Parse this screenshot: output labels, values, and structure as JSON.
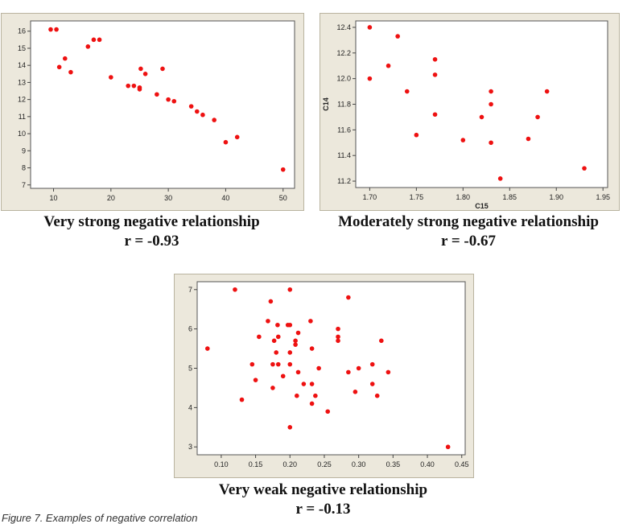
{
  "chart_data": [
    {
      "type": "scatter",
      "title": "",
      "xlabel": "",
      "ylabel": "",
      "xlim": [
        6,
        52
      ],
      "ylim": [
        6.8,
        16.6
      ],
      "xticks": [
        "10",
        "20",
        "30",
        "40",
        "50"
      ],
      "yticks": [
        "7",
        "8",
        "9",
        "10",
        "11",
        "12",
        "13",
        "14",
        "15",
        "16"
      ],
      "grid": false,
      "legend": "none",
      "point_color": "#ee1111",
      "points": [
        [
          9.5,
          16.1
        ],
        [
          10.5,
          16.1
        ],
        [
          11,
          13.9
        ],
        [
          12,
          14.4
        ],
        [
          13,
          13.6
        ],
        [
          16,
          15.1
        ],
        [
          17,
          15.5
        ],
        [
          18,
          15.5
        ],
        [
          20,
          13.3
        ],
        [
          23,
          12.8
        ],
        [
          24,
          12.8
        ],
        [
          25,
          12.7
        ],
        [
          25,
          12.6
        ],
        [
          25.2,
          13.8
        ],
        [
          26,
          13.5
        ],
        [
          28,
          12.3
        ],
        [
          29,
          13.8
        ],
        [
          30,
          12.0
        ],
        [
          31,
          11.9
        ],
        [
          34,
          11.6
        ],
        [
          35,
          11.3
        ],
        [
          36,
          11.1
        ],
        [
          38,
          10.8
        ],
        [
          40,
          9.5
        ],
        [
          42,
          9.8
        ],
        [
          50,
          7.9
        ]
      ],
      "caption_line1": "Very strong negative relationship",
      "caption_line2": "r = -0.93"
    },
    {
      "type": "scatter",
      "title": "",
      "xlabel": "C15",
      "ylabel": "C14",
      "xlim": [
        1.685,
        1.955
      ],
      "ylim": [
        11.15,
        12.45
      ],
      "xticks": [
        "1.70",
        "1.75",
        "1.80",
        "1.85",
        "1.90",
        "1.95"
      ],
      "yticks": [
        "11.2",
        "11.4",
        "11.6",
        "11.8",
        "12.0",
        "12.2",
        "12.4"
      ],
      "grid": false,
      "legend": "none",
      "point_color": "#ee1111",
      "points": [
        [
          1.7,
          12.4
        ],
        [
          1.7,
          12.0
        ],
        [
          1.72,
          12.1
        ],
        [
          1.73,
          12.33
        ],
        [
          1.74,
          11.9
        ],
        [
          1.75,
          11.56
        ],
        [
          1.77,
          12.15
        ],
        [
          1.77,
          12.03
        ],
        [
          1.77,
          11.72
        ],
        [
          1.8,
          11.52
        ],
        [
          1.82,
          11.7
        ],
        [
          1.83,
          11.9
        ],
        [
          1.83,
          11.8
        ],
        [
          1.83,
          11.5
        ],
        [
          1.84,
          11.22
        ],
        [
          1.87,
          11.53
        ],
        [
          1.88,
          11.7
        ],
        [
          1.89,
          11.9
        ],
        [
          1.93,
          11.3
        ]
      ],
      "caption_line1": "Moderately strong negative relationship",
      "caption_line2": "r = -0.67"
    },
    {
      "type": "scatter",
      "title": "",
      "xlabel": "",
      "ylabel": "",
      "xlim": [
        0.065,
        0.455
      ],
      "ylim": [
        2.8,
        7.2
      ],
      "xticks": [
        "0.10",
        "0.15",
        "0.20",
        "0.25",
        "0.30",
        "0.35",
        "0.40",
        "0.45"
      ],
      "yticks": [
        "3",
        "4",
        "5",
        "6",
        "7"
      ],
      "grid": false,
      "legend": "none",
      "point_color": "#ee1111",
      "points": [
        [
          0.08,
          5.5
        ],
        [
          0.12,
          7.0
        ],
        [
          0.13,
          4.2
        ],
        [
          0.145,
          5.1
        ],
        [
          0.15,
          4.7
        ],
        [
          0.155,
          5.8
        ],
        [
          0.168,
          6.2
        ],
        [
          0.172,
          6.7
        ],
        [
          0.175,
          5.1
        ],
        [
          0.175,
          4.5
        ],
        [
          0.177,
          5.7
        ],
        [
          0.18,
          5.4
        ],
        [
          0.182,
          6.1
        ],
        [
          0.183,
          5.8
        ],
        [
          0.183,
          5.1
        ],
        [
          0.19,
          4.8
        ],
        [
          0.197,
          6.1
        ],
        [
          0.2,
          6.1
        ],
        [
          0.2,
          7.0
        ],
        [
          0.2,
          5.4
        ],
        [
          0.2,
          5.1
        ],
        [
          0.2,
          3.5
        ],
        [
          0.208,
          5.7
        ],
        [
          0.208,
          5.6
        ],
        [
          0.21,
          4.3
        ],
        [
          0.212,
          5.9
        ],
        [
          0.212,
          4.9
        ],
        [
          0.22,
          4.6
        ],
        [
          0.23,
          6.2
        ],
        [
          0.232,
          5.5
        ],
        [
          0.232,
          4.6
        ],
        [
          0.232,
          4.1
        ],
        [
          0.237,
          4.3
        ],
        [
          0.242,
          5.0
        ],
        [
          0.255,
          3.9
        ],
        [
          0.27,
          6.0
        ],
        [
          0.27,
          5.8
        ],
        [
          0.27,
          5.7
        ],
        [
          0.285,
          6.8
        ],
        [
          0.285,
          4.9
        ],
        [
          0.295,
          4.4
        ],
        [
          0.3,
          5.0
        ],
        [
          0.32,
          5.1
        ],
        [
          0.32,
          4.6
        ],
        [
          0.327,
          4.3
        ],
        [
          0.333,
          5.7
        ],
        [
          0.343,
          4.9
        ],
        [
          0.43,
          3.0
        ]
      ],
      "caption_line1": "Very weak negative relationship",
      "caption_line2": "r = -0.13"
    }
  ],
  "footnote": "Figure 7. Examples of negative correlation"
}
